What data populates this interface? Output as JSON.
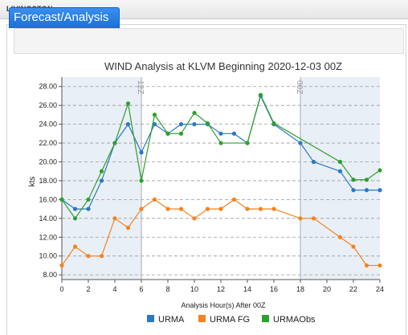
{
  "header": {
    "station": "LIVINGSTON"
  },
  "tabs": [
    {
      "label": "Forecast/Analysis",
      "active": true
    }
  ],
  "chart_data": {
    "type": "line",
    "title": "WIND Analysis at KLVM Beginning 2020-12-03 00Z",
    "xlabel": "Analysis Hour(s) After 00Z",
    "ylabel": "kts",
    "xlim": [
      0,
      24
    ],
    "ylim": [
      7.5,
      29
    ],
    "x_ticks": [
      0,
      2,
      4,
      6,
      8,
      10,
      12,
      14,
      16,
      18,
      20,
      22,
      24
    ],
    "y_ticks": [
      "8.00",
      "10.00",
      "12.00",
      "14.00",
      "16.00",
      "18.00",
      "20.00",
      "22.00",
      "24.00",
      "26.00",
      "28.00"
    ],
    "grid": "horizontal dashed",
    "legend_position": "bottom",
    "night_shading": [
      [
        0,
        6
      ],
      [
        18,
        24
      ]
    ],
    "markers": [
      {
        "x": 6,
        "label": "12Z"
      },
      {
        "x": 18,
        "label": "00Z"
      }
    ],
    "series": [
      {
        "name": "URMA",
        "color": "#2b78c2",
        "points": [
          [
            0,
            16
          ],
          [
            1,
            15
          ],
          [
            2,
            15
          ],
          [
            3,
            18
          ],
          [
            4,
            22
          ],
          [
            5,
            24
          ],
          [
            6,
            21
          ],
          [
            7,
            24
          ],
          [
            8,
            23
          ],
          [
            9,
            24
          ],
          [
            10,
            24
          ],
          [
            11,
            24
          ],
          [
            12,
            23
          ],
          [
            13,
            23
          ],
          [
            14,
            22
          ],
          [
            15,
            27
          ],
          [
            16,
            24
          ],
          [
            18,
            22
          ],
          [
            19,
            20
          ],
          [
            21,
            19
          ],
          [
            22,
            17
          ],
          [
            23,
            17
          ],
          [
            24,
            17
          ]
        ]
      },
      {
        "name": "URMA FG",
        "color": "#f5821f",
        "points": [
          [
            0,
            9
          ],
          [
            1,
            11
          ],
          [
            2,
            10
          ],
          [
            3,
            10
          ],
          [
            4,
            14
          ],
          [
            5,
            13
          ],
          [
            6,
            15
          ],
          [
            7,
            16
          ],
          [
            8,
            15
          ],
          [
            9,
            15
          ],
          [
            10,
            14
          ],
          [
            11,
            15
          ],
          [
            12,
            15
          ],
          [
            13,
            16
          ],
          [
            14,
            15
          ],
          [
            15,
            15
          ],
          [
            16,
            15
          ],
          [
            18,
            14
          ],
          [
            19,
            14
          ],
          [
            21,
            12
          ],
          [
            22,
            11
          ],
          [
            23,
            9
          ],
          [
            24,
            9
          ]
        ]
      },
      {
        "name": "URMAObs",
        "color": "#2ca02c",
        "points": [
          [
            0,
            16
          ],
          [
            1,
            14
          ],
          [
            2,
            16
          ],
          [
            3,
            19
          ],
          [
            4,
            22
          ],
          [
            5,
            26.2
          ],
          [
            6,
            18
          ],
          [
            7,
            25
          ],
          [
            8,
            23
          ],
          [
            9,
            23
          ],
          [
            10,
            25.2
          ],
          [
            11,
            24.1
          ],
          [
            12,
            22
          ],
          [
            14,
            22
          ],
          [
            15,
            27.1
          ],
          [
            16,
            24.1
          ],
          [
            21,
            20
          ],
          [
            22,
            18.1
          ],
          [
            23,
            18.1
          ],
          [
            24,
            19.1
          ]
        ]
      }
    ]
  }
}
